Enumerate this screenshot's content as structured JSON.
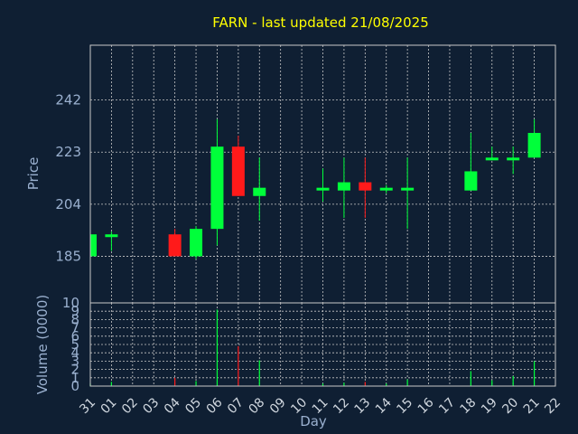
{
  "chart_data": [
    {
      "type": "candlestick",
      "title": "FARN - last updated 21/08/2025",
      "ylabel": "Price",
      "ylim": [
        168,
        262
      ],
      "yticks": [
        185,
        204,
        223,
        242
      ],
      "grid": true,
      "colors": {
        "up": "#00ff3a",
        "down": "#ff1a1a",
        "text": "#9ab0cf",
        "title": "#ffff00"
      },
      "categories": [
        "31",
        "01",
        "02",
        "03",
        "04",
        "05",
        "06",
        "07",
        "08",
        "09",
        "10",
        "11",
        "12",
        "13",
        "14",
        "15",
        "16",
        "17",
        "18",
        "19",
        "20",
        "21",
        "22"
      ],
      "candles": [
        {
          "day": "31",
          "open": 185,
          "close": 193,
          "high": 193,
          "low": 185
        },
        {
          "day": "01",
          "open": 192,
          "close": 193,
          "high": 194,
          "low": 187
        },
        {
          "day": "04",
          "open": 193,
          "close": 185,
          "high": 195,
          "low": 185
        },
        {
          "day": "05",
          "open": 185,
          "close": 195,
          "high": 196,
          "low": 184
        },
        {
          "day": "06",
          "open": 195,
          "close": 225,
          "high": 235,
          "low": 189
        },
        {
          "day": "07",
          "open": 225,
          "close": 207,
          "high": 229,
          "low": 207
        },
        {
          "day": "08",
          "open": 207,
          "close": 210,
          "high": 221,
          "low": 198
        },
        {
          "day": "11",
          "open": 209,
          "close": 210,
          "high": 217,
          "low": 205
        },
        {
          "day": "12",
          "open": 209,
          "close": 212,
          "high": 221,
          "low": 199
        },
        {
          "day": "13",
          "open": 212,
          "close": 209,
          "high": 221,
          "low": 199
        },
        {
          "day": "14",
          "open": 209,
          "close": 210,
          "high": 211,
          "low": 208
        },
        {
          "day": "15",
          "open": 209,
          "close": 210,
          "high": 221,
          "low": 195
        },
        {
          "day": "18",
          "open": 209,
          "close": 216,
          "high": 230,
          "low": 209
        },
        {
          "day": "19",
          "open": 220,
          "close": 221,
          "high": 225,
          "low": 220
        },
        {
          "day": "20",
          "open": 220,
          "close": 221,
          "high": 225,
          "low": 215
        },
        {
          "day": "21",
          "open": 221,
          "close": 230,
          "high": 235,
          "low": 221
        }
      ]
    },
    {
      "type": "bar",
      "ylabel": "Volume (0000)",
      "xlabel": "Day",
      "ylim": [
        0,
        10
      ],
      "yticks": [
        0,
        1,
        2,
        3,
        4,
        5,
        6,
        7,
        8,
        9,
        10
      ],
      "categories": [
        "31",
        "01",
        "02",
        "03",
        "04",
        "05",
        "06",
        "07",
        "08",
        "09",
        "10",
        "11",
        "12",
        "13",
        "14",
        "15",
        "16",
        "17",
        "18",
        "19",
        "20",
        "21",
        "22"
      ],
      "volumes": [
        {
          "day": "31",
          "value": 0.3,
          "dir": "up"
        },
        {
          "day": "01",
          "value": 0.5,
          "dir": "up"
        },
        {
          "day": "04",
          "value": 1.0,
          "dir": "down"
        },
        {
          "day": "05",
          "value": 0.6,
          "dir": "up"
        },
        {
          "day": "06",
          "value": 9.2,
          "dir": "up"
        },
        {
          "day": "07",
          "value": 4.8,
          "dir": "down"
        },
        {
          "day": "08",
          "value": 3.1,
          "dir": "up"
        },
        {
          "day": "11",
          "value": 0.3,
          "dir": "up"
        },
        {
          "day": "12",
          "value": 0.4,
          "dir": "up"
        },
        {
          "day": "13",
          "value": 0.5,
          "dir": "down"
        },
        {
          "day": "14",
          "value": 0.3,
          "dir": "up"
        },
        {
          "day": "15",
          "value": 0.8,
          "dir": "up"
        },
        {
          "day": "18",
          "value": 1.8,
          "dir": "up"
        },
        {
          "day": "19",
          "value": 0.7,
          "dir": "up"
        },
        {
          "day": "20",
          "value": 1.2,
          "dir": "up"
        },
        {
          "day": "21",
          "value": 3.0,
          "dir": "up"
        }
      ]
    }
  ]
}
